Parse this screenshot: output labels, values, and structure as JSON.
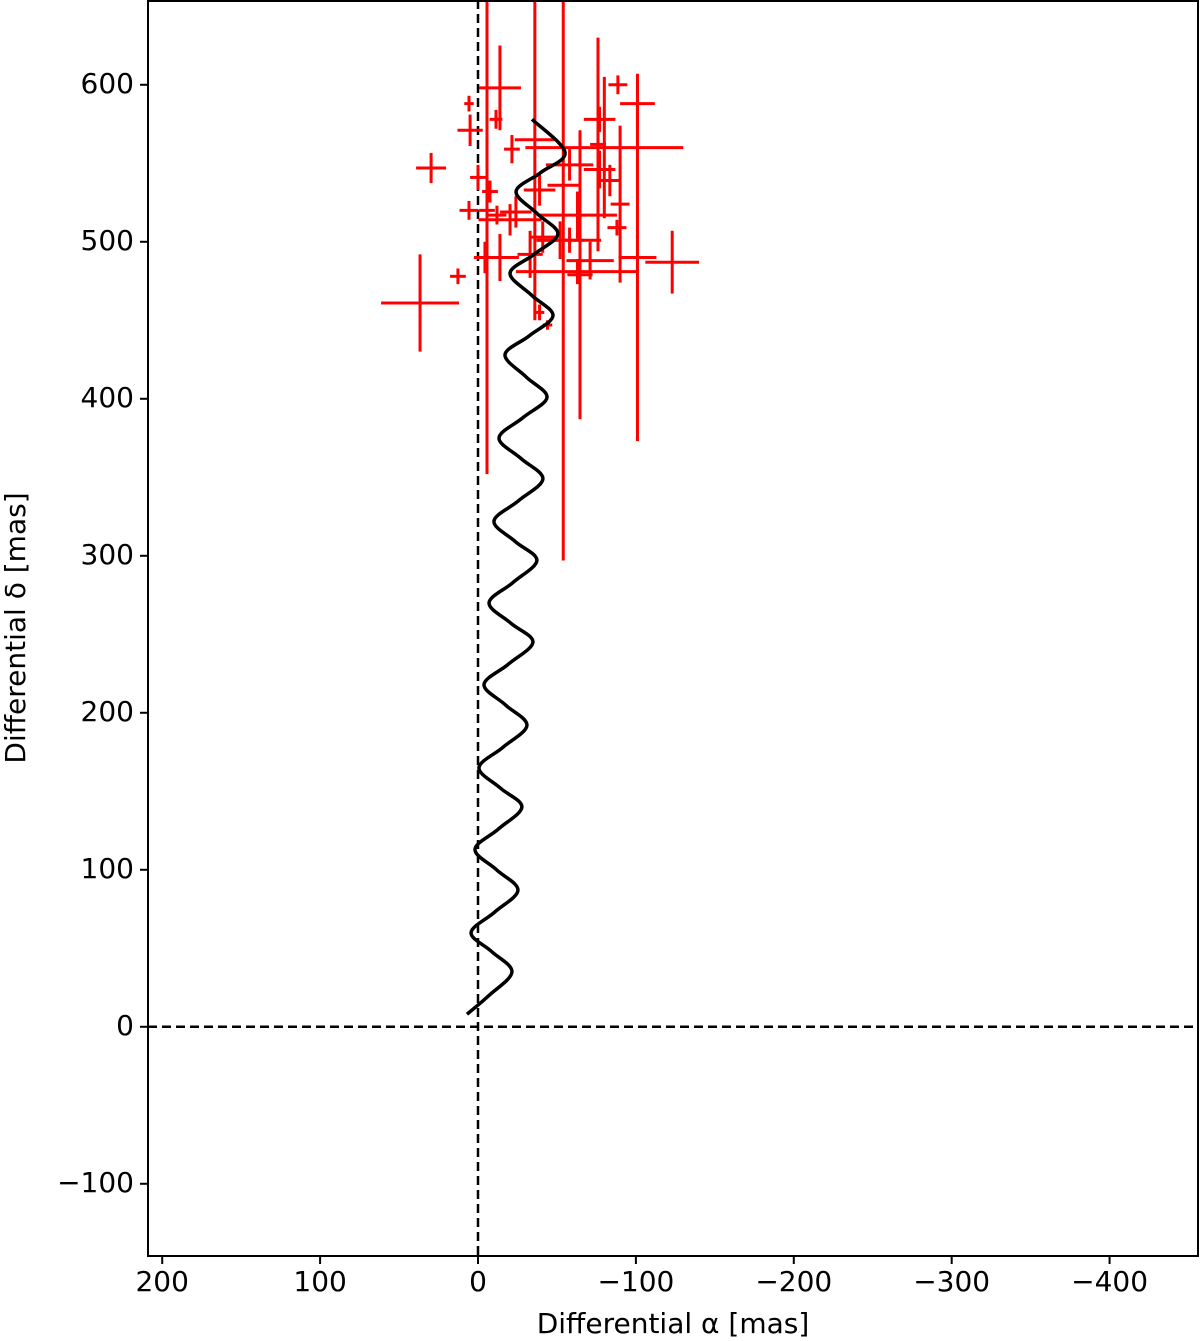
{
  "chart_data": {
    "type": "scatter",
    "xlabel": "Differential α [mas]",
    "ylabel": "Differential δ [mas]",
    "xlim": [
      209,
      -456
    ],
    "ylim": [
      -146,
      654
    ],
    "xticks": [
      200,
      100,
      0,
      {
        "value": -100,
        "label": "−100"
      },
      {
        "value": -200,
        "label": "−200"
      },
      {
        "value": -300,
        "label": "−300"
      },
      {
        "value": -400,
        "label": "−400"
      }
    ],
    "yticks": [
      {
        "value": -100,
        "label": "−100"
      },
      0,
      100,
      200,
      300,
      400,
      500,
      600
    ],
    "hlines": [
      0
    ],
    "vlines": [
      0
    ],
    "curve": {
      "color": "#000000",
      "x": [
        7,
        -7,
        -21.5,
        -8.5,
        4.4,
        -10.5,
        -25.3,
        -11.7,
        1.9,
        -13,
        -27.8,
        -14.2,
        -0.6,
        -15.8,
        -31,
        -17.4,
        -3.8,
        -19.3,
        -34.8,
        -20.9,
        -7,
        -22.2,
        -37.3,
        -23.7,
        -10.1,
        -25.6,
        -41.1,
        -27.2,
        -13.3,
        -28.5,
        -43.7,
        -30.4,
        -17.1,
        -32.3,
        -47.5,
        -33.9,
        -20.3,
        -35.5,
        -50.6,
        -37.4,
        -24.1,
        -39.6,
        -55.1,
        -34.2
      ],
      "y": [
        8,
        20,
        35,
        48,
        60,
        73,
        87,
        100,
        113,
        126,
        140,
        152,
        165,
        178,
        192,
        205,
        218,
        231,
        245,
        257,
        270,
        283,
        297,
        309,
        322,
        335,
        349,
        362,
        375,
        388,
        401,
        414,
        428,
        440,
        453,
        466,
        480,
        492,
        505,
        518,
        532,
        544,
        557,
        578
      ]
    },
    "points": {
      "color": "#ff0000",
      "x": [
        36.7,
        29.7,
        12.7,
        5.7,
        5,
        5.7,
        0,
        -5.7,
        -13.9,
        -11.4,
        -7.6,
        -4.4,
        -13.9,
        -21.5,
        -20.3,
        -36,
        -54,
        -39,
        -41,
        -39,
        -44,
        -63,
        -63,
        -64.6,
        -58,
        -77,
        -83.5,
        -76,
        -88.6,
        -77,
        -101,
        -101,
        -80,
        -123,
        -88,
        -58,
        -90,
        -71,
        -52,
        -12,
        -24,
        -33
      ],
      "y": [
        461,
        547,
        478,
        588,
        571,
        520,
        541,
        520,
        598,
        578,
        532,
        490,
        490,
        559,
        514,
        565,
        536,
        533,
        503,
        455,
        447,
        481,
        517,
        479,
        549,
        546,
        539,
        562,
        600,
        578,
        588,
        490,
        560,
        487,
        509,
        501,
        524,
        488,
        501,
        517,
        519,
        492
      ],
      "xerr": [
        24.7,
        9.5,
        5,
        3,
        8,
        6,
        5,
        5,
        13.3,
        4,
        5,
        7,
        12,
        5,
        20,
        12.7,
        10,
        10,
        8,
        3,
        3,
        39,
        25,
        8,
        15,
        10,
        6,
        5,
        6,
        10,
        11,
        12,
        50,
        17,
        6,
        20,
        6,
        15,
        15,
        6,
        10,
        8
      ],
      "yerr": [
        31,
        9.6,
        5,
        5,
        10,
        6,
        8,
        168,
        27,
        6,
        7,
        10,
        15,
        9,
        10,
        115,
        239,
        10,
        10,
        5,
        3,
        8,
        15,
        92,
        10,
        12,
        10,
        68,
        6,
        8,
        15,
        117,
        45,
        20,
        5,
        8,
        50,
        12,
        12,
        6,
        10,
        15
      ]
    }
  }
}
